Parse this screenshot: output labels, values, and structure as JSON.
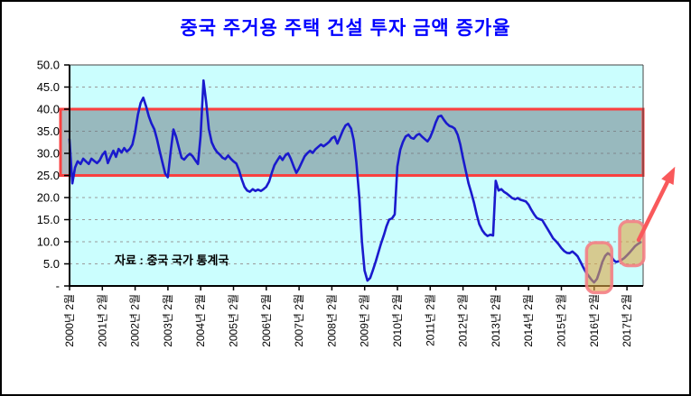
{
  "chart_data": {
    "type": "line",
    "title": "중국 주거용  주택 건설 투자 금액 증가율",
    "title_color": "#0000FF",
    "source_note": "자료 : 중국 국가 통계국",
    "grid": "horizontal-dashed",
    "legend": "none",
    "ylim": [
      0,
      50
    ],
    "y_ticks": [
      50,
      45,
      40,
      35,
      30,
      25,
      20,
      15,
      10,
      5,
      0
    ],
    "y_tick_labels": [
      "50.0",
      "45.0",
      "40.0",
      "35.0",
      "30.0",
      "25.0",
      "20.0",
      "15.0",
      "10.0",
      "5.0",
      "-"
    ],
    "y_grid_values": [
      45,
      40,
      35,
      30,
      25,
      20,
      15,
      10,
      5
    ],
    "x_labels": [
      "2000년 2월",
      "2001년 2월",
      "2002년 2월",
      "2003년 2월",
      "2004년 2월",
      "2005년 2월",
      "2006년 2월",
      "2007년 2월",
      "2008년 2월",
      "2009년 2월",
      "2010년 2월",
      "2011년 2월",
      "2012년 2월",
      "2013년 2월",
      "2014년 2월",
      "2015년 2월",
      "2016년 2월",
      "2017년 2월"
    ],
    "x_label_start_year": 2000.0833,
    "colors": {
      "plot_bg": "#CBFEFE",
      "line": "#1A1ACD",
      "grid": "#9A9A9A",
      "axis": "#000000",
      "band_fill": "rgba(105,120,130,0.52)",
      "band_stroke": "#F94040",
      "highlight_fill": "rgba(222,166,70,0.60)",
      "highlight_stroke": "rgba(244,128,134,0.90)",
      "arrow": "#F9595B",
      "text": "#000000"
    },
    "annotations": {
      "band": {
        "meaning": "25~40% reference range",
        "y_from": 25,
        "y_to": 40
      },
      "highlight_boxes": [
        {
          "meaning": "2016 trough",
          "x_from": 2015.85,
          "x_to": 2016.62,
          "y_from": -1.5,
          "y_to": 9.8
        },
        {
          "meaning": "2017 rebound",
          "x_from": 2016.86,
          "x_to": 2017.6,
          "y_from": 4.6,
          "y_to": 14.6
        }
      ],
      "arrow": {
        "meaning": "rising trend",
        "x1": 2017.44,
        "y1": 10.4,
        "x2": 2018.55,
        "y2": 27.0
      }
    },
    "series": [
      {
        "name": "중국 주거용 주택 건설 투자 금액 증가율 (%)",
        "points": [
          [
            2000.08,
            33.2
          ],
          [
            2000.17,
            23.2
          ],
          [
            2000.25,
            26.8
          ],
          [
            2000.33,
            28.2
          ],
          [
            2000.42,
            27.6
          ],
          [
            2000.5,
            28.8
          ],
          [
            2000.58,
            28.2
          ],
          [
            2000.67,
            27.6
          ],
          [
            2000.75,
            28.8
          ],
          [
            2000.83,
            28.3
          ],
          [
            2000.92,
            27.8
          ],
          [
            2001.0,
            28.4
          ],
          [
            2001.08,
            29.6
          ],
          [
            2001.17,
            30.4
          ],
          [
            2001.25,
            27.8
          ],
          [
            2001.33,
            29.2
          ],
          [
            2001.42,
            30.6
          ],
          [
            2001.5,
            29.2
          ],
          [
            2001.58,
            31.0
          ],
          [
            2001.67,
            30.2
          ],
          [
            2001.75,
            31.2
          ],
          [
            2001.83,
            30.4
          ],
          [
            2001.92,
            31.0
          ],
          [
            2002.0,
            32.0
          ],
          [
            2002.08,
            34.7
          ],
          [
            2002.17,
            38.8
          ],
          [
            2002.25,
            41.4
          ],
          [
            2002.33,
            42.6
          ],
          [
            2002.42,
            40.6
          ],
          [
            2002.5,
            38.4
          ],
          [
            2002.58,
            36.8
          ],
          [
            2002.67,
            35.4
          ],
          [
            2002.75,
            33.2
          ],
          [
            2002.83,
            30.6
          ],
          [
            2002.92,
            27.8
          ],
          [
            2003.0,
            25.4
          ],
          [
            2003.08,
            24.6
          ],
          [
            2003.17,
            30.5
          ],
          [
            2003.25,
            35.4
          ],
          [
            2003.33,
            33.8
          ],
          [
            2003.42,
            31.2
          ],
          [
            2003.5,
            29.0
          ],
          [
            2003.58,
            28.6
          ],
          [
            2003.67,
            29.4
          ],
          [
            2003.75,
            29.9
          ],
          [
            2003.83,
            29.4
          ],
          [
            2003.92,
            28.4
          ],
          [
            2004.0,
            27.6
          ],
          [
            2004.08,
            34.0
          ],
          [
            2004.17,
            46.5
          ],
          [
            2004.25,
            41.5
          ],
          [
            2004.33,
            35.5
          ],
          [
            2004.42,
            32.5
          ],
          [
            2004.5,
            31.2
          ],
          [
            2004.58,
            30.3
          ],
          [
            2004.67,
            29.7
          ],
          [
            2004.75,
            29.0
          ],
          [
            2004.83,
            28.7
          ],
          [
            2004.92,
            29.5
          ],
          [
            2005.0,
            28.8
          ],
          [
            2005.08,
            28.2
          ],
          [
            2005.17,
            27.7
          ],
          [
            2005.25,
            26.2
          ],
          [
            2005.33,
            24.2
          ],
          [
            2005.42,
            22.4
          ],
          [
            2005.5,
            21.6
          ],
          [
            2005.58,
            21.3
          ],
          [
            2005.67,
            21.9
          ],
          [
            2005.75,
            21.5
          ],
          [
            2005.83,
            21.8
          ],
          [
            2005.92,
            21.5
          ],
          [
            2006.0,
            21.9
          ],
          [
            2006.08,
            22.4
          ],
          [
            2006.17,
            23.6
          ],
          [
            2006.25,
            25.6
          ],
          [
            2006.33,
            27.3
          ],
          [
            2006.42,
            28.4
          ],
          [
            2006.5,
            29.3
          ],
          [
            2006.58,
            28.5
          ],
          [
            2006.67,
            29.6
          ],
          [
            2006.75,
            30.0
          ],
          [
            2006.83,
            28.8
          ],
          [
            2006.92,
            27.0
          ],
          [
            2007.0,
            25.6
          ],
          [
            2007.08,
            26.6
          ],
          [
            2007.17,
            28.0
          ],
          [
            2007.25,
            29.3
          ],
          [
            2007.33,
            30.0
          ],
          [
            2007.42,
            30.6
          ],
          [
            2007.5,
            30.1
          ],
          [
            2007.58,
            30.9
          ],
          [
            2007.67,
            31.5
          ],
          [
            2007.75,
            32.0
          ],
          [
            2007.83,
            31.6
          ],
          [
            2007.92,
            32.1
          ],
          [
            2008.0,
            32.6
          ],
          [
            2008.08,
            33.4
          ],
          [
            2008.17,
            33.8
          ],
          [
            2008.25,
            32.2
          ],
          [
            2008.33,
            33.6
          ],
          [
            2008.42,
            35.2
          ],
          [
            2008.5,
            36.3
          ],
          [
            2008.58,
            36.7
          ],
          [
            2008.67,
            35.6
          ],
          [
            2008.75,
            33.0
          ],
          [
            2008.83,
            28.0
          ],
          [
            2008.92,
            20.0
          ],
          [
            2009.0,
            10.0
          ],
          [
            2009.08,
            3.5
          ],
          [
            2009.17,
            1.2
          ],
          [
            2009.25,
            1.8
          ],
          [
            2009.33,
            3.5
          ],
          [
            2009.42,
            5.5
          ],
          [
            2009.5,
            7.5
          ],
          [
            2009.58,
            9.5
          ],
          [
            2009.67,
            11.5
          ],
          [
            2009.75,
            13.5
          ],
          [
            2009.83,
            15.0
          ],
          [
            2009.92,
            15.3
          ],
          [
            2010.0,
            16.2
          ],
          [
            2010.08,
            27.0
          ],
          [
            2010.17,
            30.8
          ],
          [
            2010.25,
            32.6
          ],
          [
            2010.33,
            33.8
          ],
          [
            2010.42,
            34.2
          ],
          [
            2010.5,
            33.5
          ],
          [
            2010.58,
            33.3
          ],
          [
            2010.67,
            34.1
          ],
          [
            2010.75,
            34.4
          ],
          [
            2010.83,
            33.8
          ],
          [
            2010.92,
            33.2
          ],
          [
            2011.0,
            32.7
          ],
          [
            2011.08,
            33.6
          ],
          [
            2011.17,
            35.2
          ],
          [
            2011.25,
            37.0
          ],
          [
            2011.33,
            38.3
          ],
          [
            2011.42,
            38.5
          ],
          [
            2011.5,
            37.6
          ],
          [
            2011.58,
            36.8
          ],
          [
            2011.67,
            36.2
          ],
          [
            2011.75,
            36.0
          ],
          [
            2011.83,
            35.6
          ],
          [
            2011.92,
            34.2
          ],
          [
            2012.0,
            32.0
          ],
          [
            2012.08,
            29.0
          ],
          [
            2012.17,
            26.0
          ],
          [
            2012.25,
            23.2
          ],
          [
            2012.33,
            21.2
          ],
          [
            2012.42,
            18.8
          ],
          [
            2012.5,
            16.2
          ],
          [
            2012.58,
            14.0
          ],
          [
            2012.67,
            12.6
          ],
          [
            2012.75,
            11.8
          ],
          [
            2012.83,
            11.3
          ],
          [
            2012.92,
            11.6
          ],
          [
            2013.0,
            11.4
          ],
          [
            2013.08,
            23.8
          ],
          [
            2013.17,
            21.6
          ],
          [
            2013.25,
            21.9
          ],
          [
            2013.33,
            21.3
          ],
          [
            2013.42,
            20.9
          ],
          [
            2013.5,
            20.4
          ],
          [
            2013.58,
            19.9
          ],
          [
            2013.67,
            19.6
          ],
          [
            2013.75,
            19.9
          ],
          [
            2013.83,
            19.5
          ],
          [
            2013.92,
            19.3
          ],
          [
            2014.0,
            19.1
          ],
          [
            2014.08,
            18.4
          ],
          [
            2014.17,
            17.2
          ],
          [
            2014.25,
            16.2
          ],
          [
            2014.33,
            15.4
          ],
          [
            2014.42,
            15.1
          ],
          [
            2014.5,
            14.9
          ],
          [
            2014.58,
            13.9
          ],
          [
            2014.67,
            12.8
          ],
          [
            2014.75,
            11.8
          ],
          [
            2014.83,
            10.8
          ],
          [
            2014.92,
            10.1
          ],
          [
            2015.0,
            9.4
          ],
          [
            2015.08,
            8.6
          ],
          [
            2015.17,
            7.9
          ],
          [
            2015.25,
            7.5
          ],
          [
            2015.33,
            7.4
          ],
          [
            2015.42,
            7.8
          ],
          [
            2015.5,
            7.3
          ],
          [
            2015.58,
            6.7
          ],
          [
            2015.67,
            5.4
          ],
          [
            2015.75,
            4.2
          ],
          [
            2015.83,
            3.1
          ],
          [
            2015.92,
            2.2
          ],
          [
            2016.0,
            1.4
          ],
          [
            2016.08,
            0.8
          ],
          [
            2016.17,
            1.6
          ],
          [
            2016.25,
            3.4
          ],
          [
            2016.33,
            5.4
          ],
          [
            2016.42,
            6.8
          ],
          [
            2016.5,
            7.4
          ],
          [
            2016.58,
            7.0
          ],
          [
            2016.67,
            5.9
          ],
          [
            2016.75,
            5.4
          ],
          [
            2016.83,
            5.6
          ],
          [
            2016.92,
            5.9
          ],
          [
            2017.0,
            6.3
          ],
          [
            2017.08,
            6.9
          ],
          [
            2017.17,
            7.6
          ],
          [
            2017.25,
            8.3
          ],
          [
            2017.33,
            9.0
          ],
          [
            2017.42,
            9.5
          ],
          [
            2017.5,
            9.9
          ]
        ]
      }
    ]
  }
}
